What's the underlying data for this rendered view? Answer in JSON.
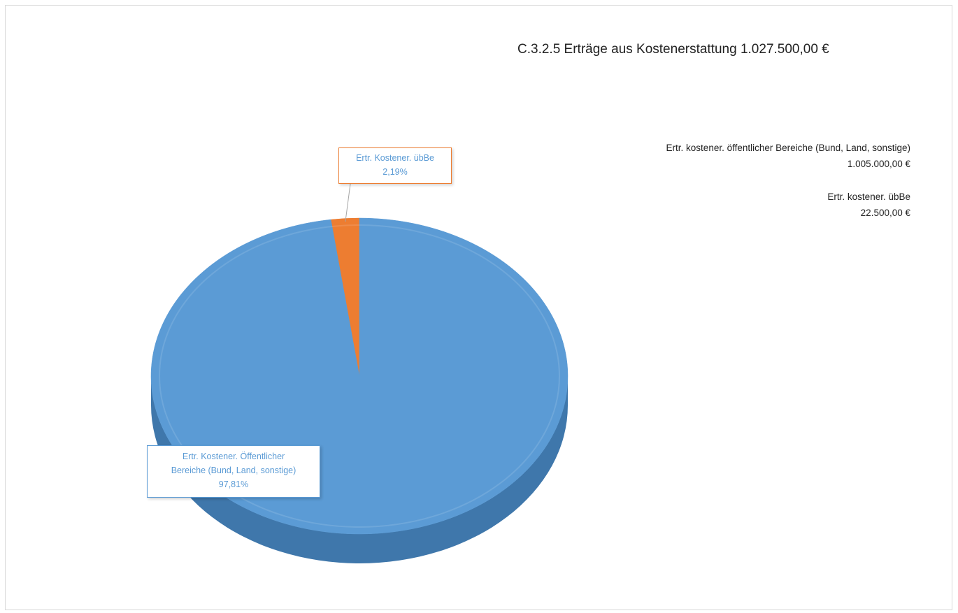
{
  "chart_data": {
    "type": "pie",
    "title": "C.3.2.5 Erträge aus Kostenerstattung 1.027.500,00 €",
    "slices": [
      {
        "name": "Ertr. kostener. öffentlicher Bereiche (Bund, Land, sonstige)",
        "amount": "1.005.000,00 €",
        "value": 1005000,
        "percent": 97.81,
        "label_name_1": "Ertr. Kostener. Öffentlicher",
        "label_name_2": "Bereiche (Bund, Land, sonstige)",
        "label_percent": "97,81%",
        "color": "#5b9bd5",
        "side_color": "#3f77ab"
      },
      {
        "name": "Ertr. kostener. übBe",
        "amount": "22.500,00 €",
        "value": 22500,
        "percent": 2.19,
        "label_name_1": "Ertr. Kostener. übBe",
        "label_percent": "2,19%",
        "color": "#ed7d31",
        "side_color": "#b85c1f"
      }
    ],
    "legend_position": "right",
    "style": "3d-pie"
  }
}
